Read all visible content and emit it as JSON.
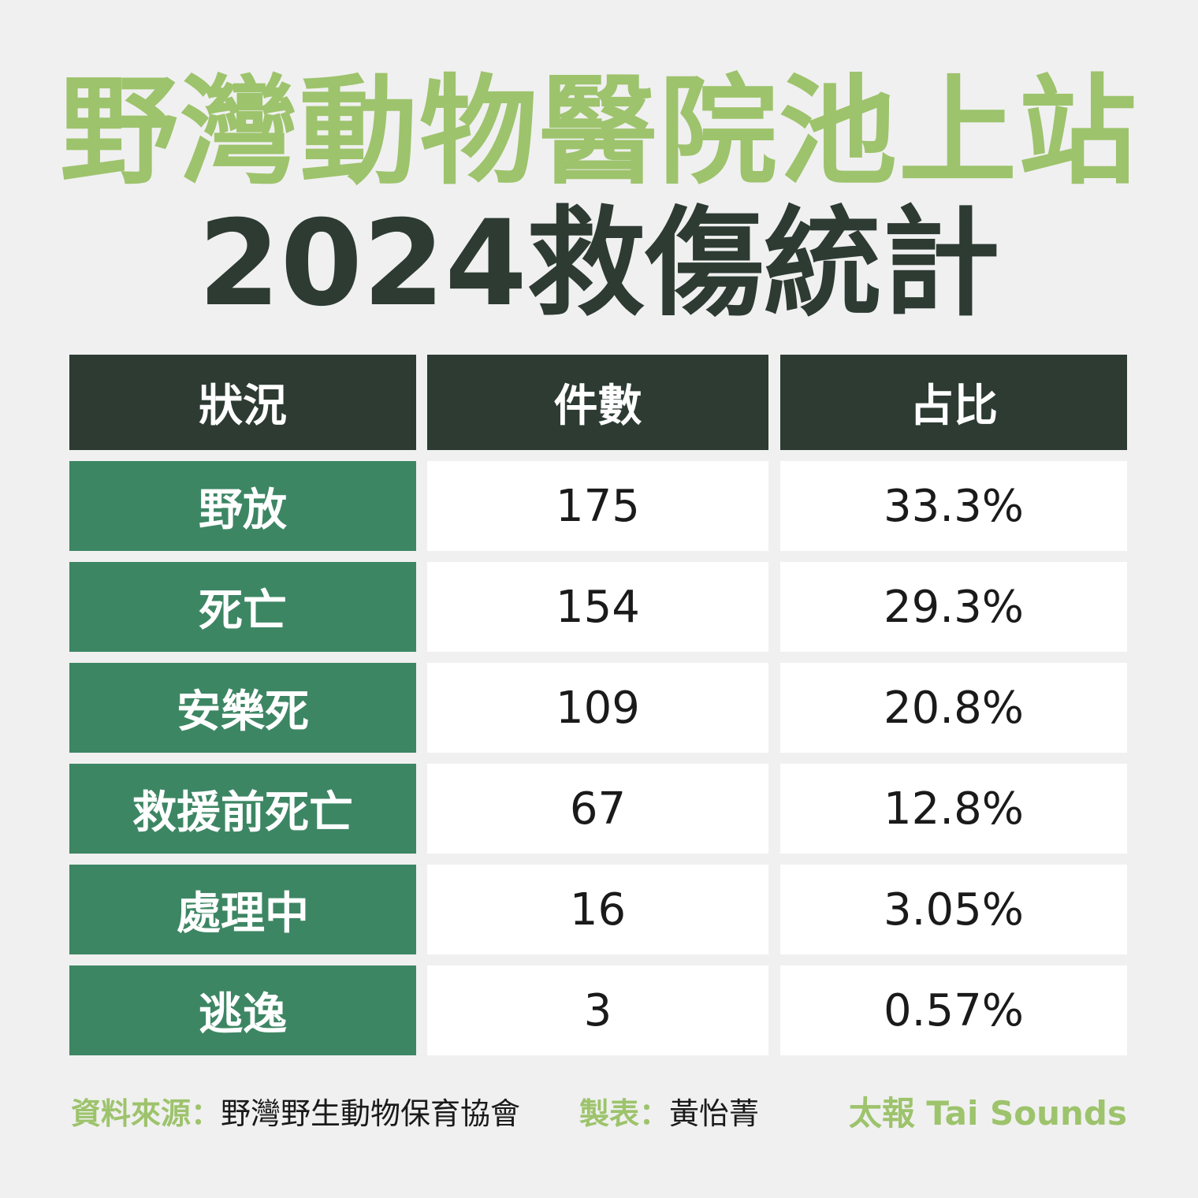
{
  "title": "野灣動物醫院池上站",
  "subtitle": "2024救傷統計",
  "chart_data": {
    "type": "table",
    "columns": [
      "狀況",
      "件數",
      "占比"
    ],
    "rows": [
      {
        "label": "野放",
        "count": "175",
        "percent": "33.3%"
      },
      {
        "label": "死亡",
        "count": "154",
        "percent": "29.3%"
      },
      {
        "label": "安樂死",
        "count": "109",
        "percent": "20.8%"
      },
      {
        "label": "救援前死亡",
        "count": "67",
        "percent": "12.8%"
      },
      {
        "label": "處理中",
        "count": "16",
        "percent": "3.05%"
      },
      {
        "label": "逃逸",
        "count": "3",
        "percent": "0.57%"
      }
    ]
  },
  "footer": {
    "source_label": "資料來源：",
    "source_value": "野灣野生動物保育協會",
    "maker_label": "製表：",
    "maker_value": "黃怡菁",
    "brand": "太報 Tai Sounds"
  },
  "colors": {
    "title_green": "#9dc36c",
    "header_dark": "#2d3b33",
    "label_green": "#3d8664",
    "value_bg": "#ffffff",
    "page_bg": "#f0f0f0"
  }
}
